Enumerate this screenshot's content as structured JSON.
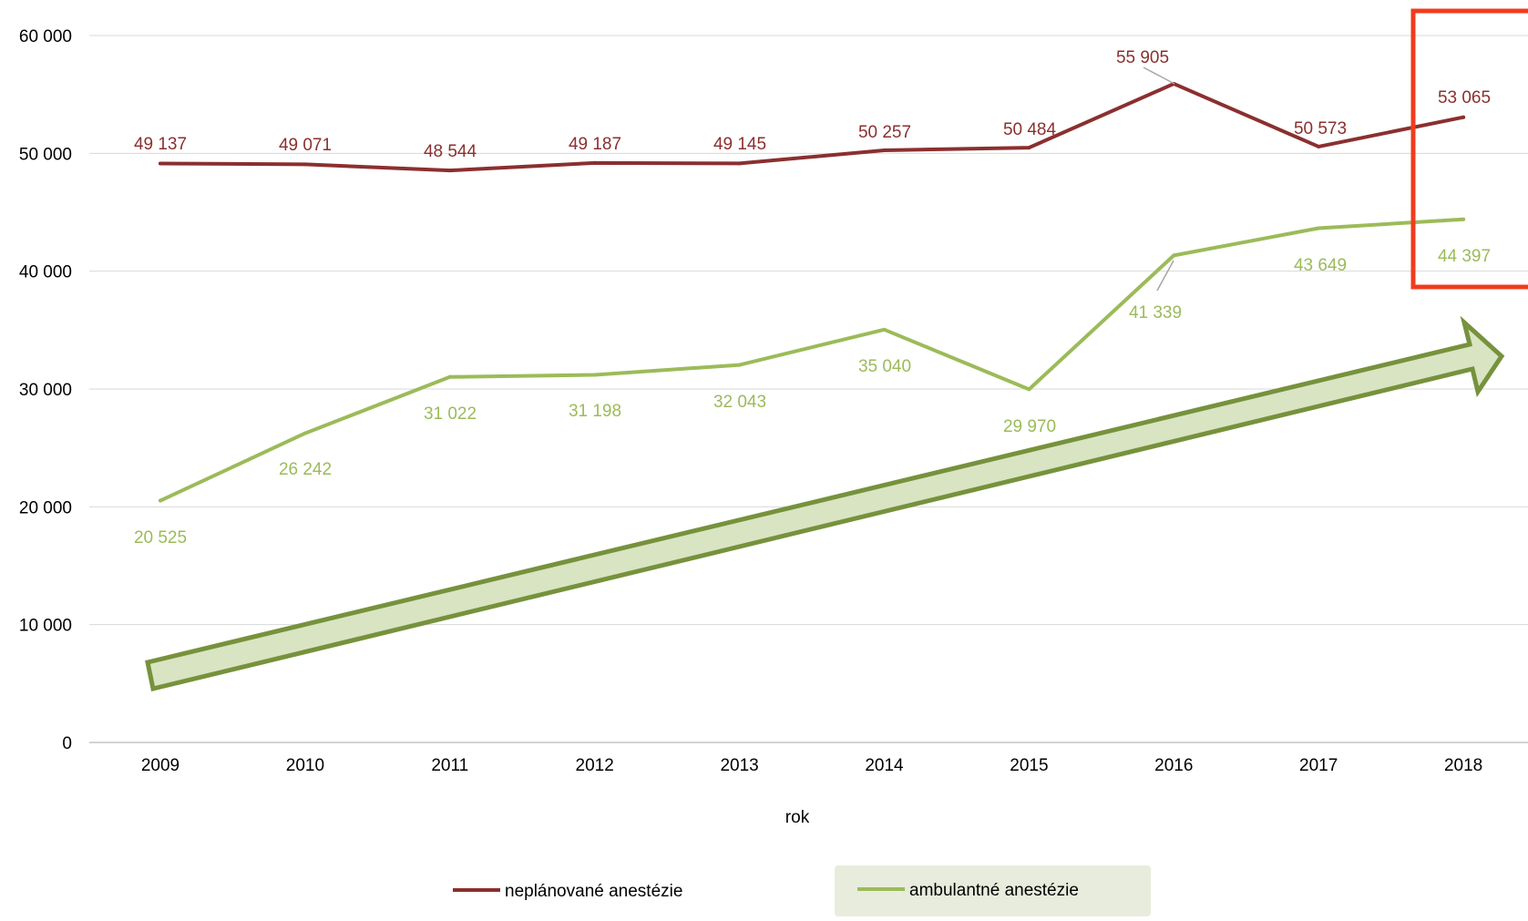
{
  "chart_data": {
    "type": "line",
    "xlabel": "rok",
    "ylabel": "",
    "ylim": [
      0,
      60000
    ],
    "yticks": [
      0,
      10000,
      20000,
      30000,
      40000,
      50000,
      60000
    ],
    "ytick_labels": [
      "0",
      "10 000",
      "20 000",
      "30 000",
      "40 000",
      "50 000",
      "60 000"
    ],
    "categories": [
      "2009",
      "2010",
      "2011",
      "2012",
      "2013",
      "2014",
      "2015",
      "2016",
      "2017",
      "2018"
    ],
    "grid": true,
    "legend_position": "bottom",
    "series": [
      {
        "name": "neplánované anestézie",
        "color": "#8b2f2f",
        "values": [
          49137,
          49071,
          48544,
          49187,
          49145,
          50257,
          50484,
          55905,
          50573,
          53065
        ],
        "labels": [
          "49 137",
          "49 071",
          "48 544",
          "49 187",
          "49 145",
          "50 257",
          "50 484",
          "55 905",
          "50 573",
          "53 065"
        ]
      },
      {
        "name": "ambulantné anestézie",
        "color": "#9bbb59",
        "values": [
          20525,
          26242,
          31022,
          31198,
          32043,
          35040,
          29970,
          41339,
          43649,
          44397
        ],
        "labels": [
          "20 525",
          "26 242",
          "31 022",
          "31 198",
          "32 043",
          "35 040",
          "29 970",
          "41 339",
          "43 649",
          "44 397"
        ]
      }
    ],
    "annotations": {
      "trend_arrow": "rising trend arrow",
      "highlight_box": "2018 values highlighted",
      "highlight_color": "#f03c1e",
      "arrow_fill": "#d9e4c3",
      "arrow_stroke": "#76923c",
      "legend_highlight_fill": "#e8ecdc"
    }
  }
}
